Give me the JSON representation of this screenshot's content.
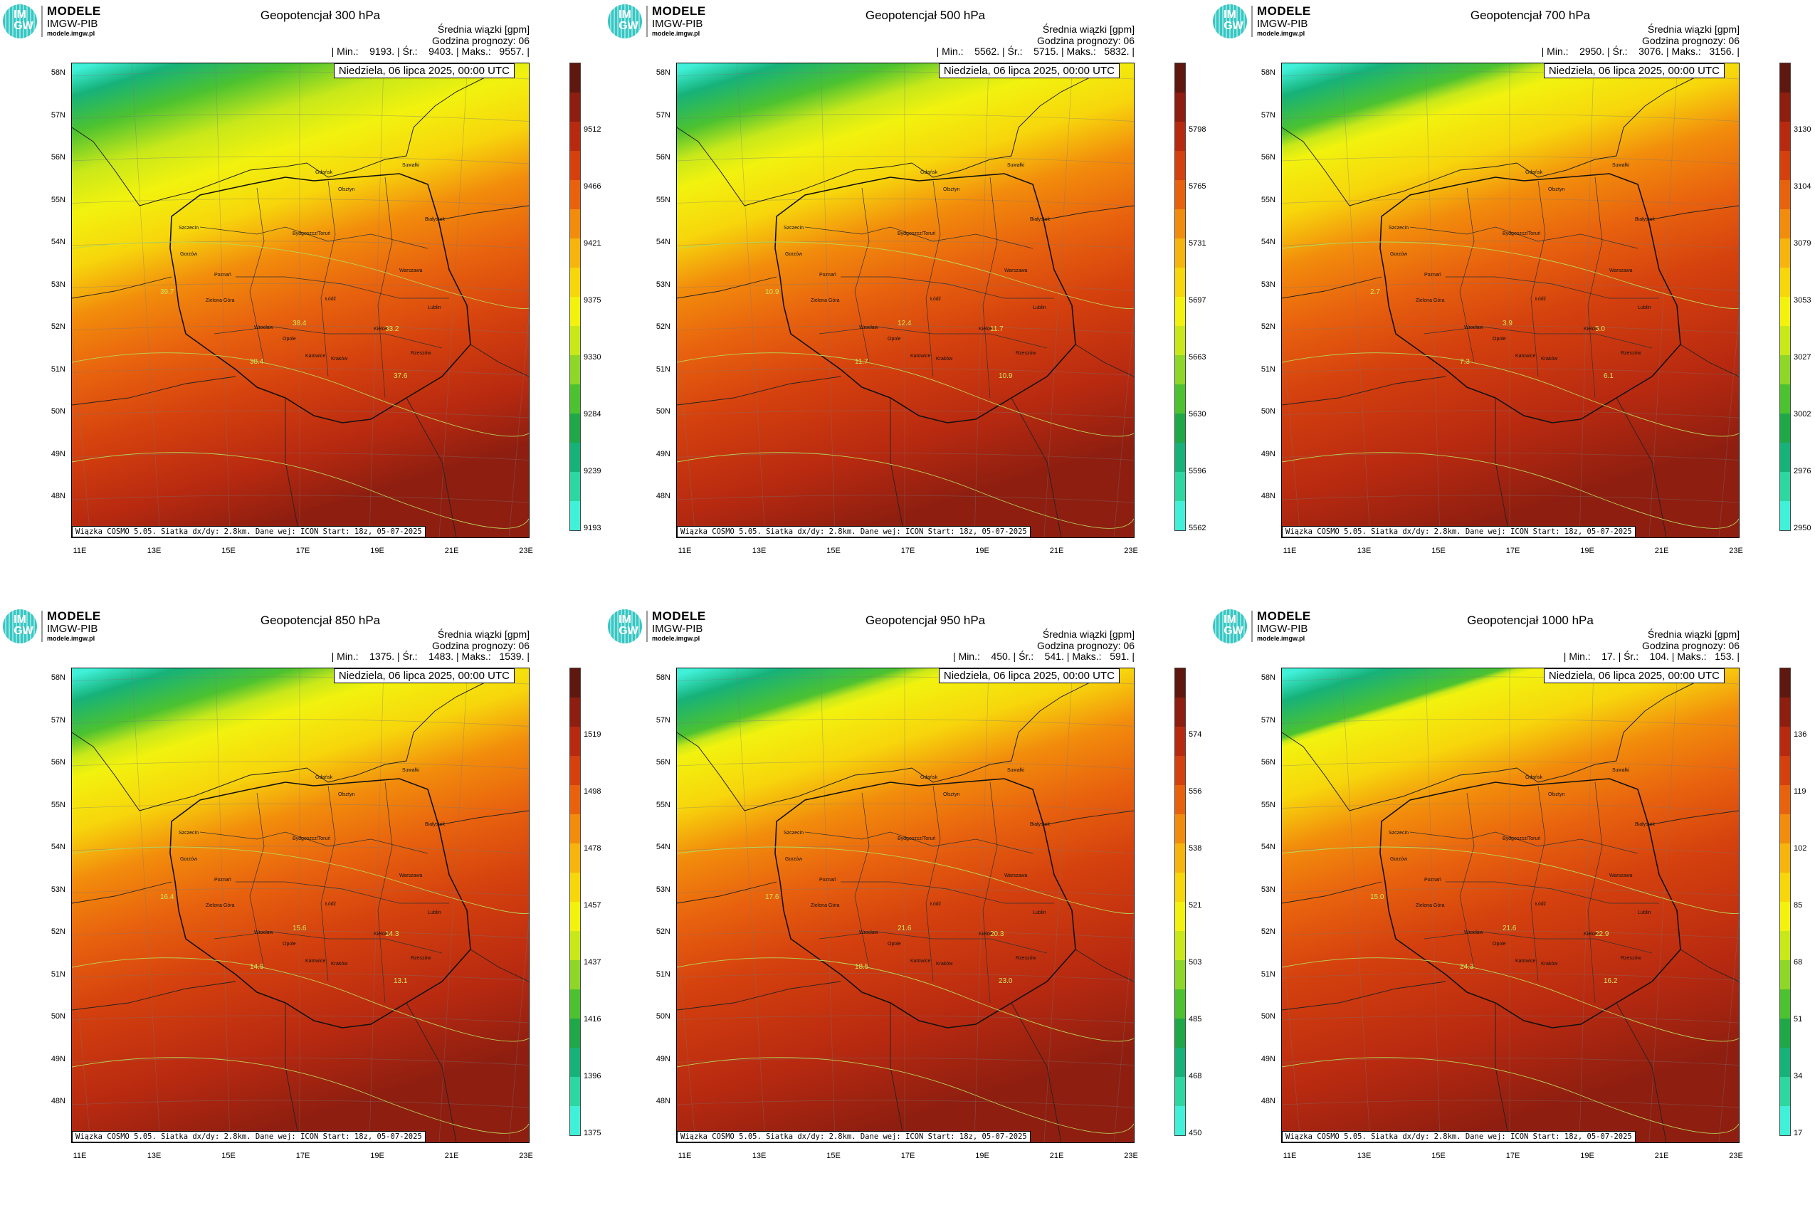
{
  "logo": {
    "mark_top": "IM",
    "mark_bottom": "GW",
    "name": "MODELE",
    "org": "IMGW-PIB",
    "url": "modele.imgw.pl"
  },
  "date_label": "Niedziela, 06 lipca 2025, 00:00 UTC",
  "footer": "Wiązka COSMO 5.05. Siatka dx/dy: 2.8km. Dane wej: ICON Start: 18z, 05-07-2025",
  "info_line1": "Średnia wiązki [gpm]",
  "info_line2": "Godzina prognozy: 06",
  "lat_labels": [
    "58N",
    "57N",
    "56N",
    "55N",
    "54N",
    "53N",
    "52N",
    "51N",
    "50N",
    "49N",
    "48N"
  ],
  "lon_labels": [
    "11E",
    "13E",
    "15E",
    "17E",
    "19E",
    "21E",
    "23E"
  ],
  "cities": [
    "Gdańsk",
    "Olsztyn",
    "Suwałki",
    "Białystok",
    "Szczecin",
    "Bydgoszcz/Toruń",
    "Gorzów",
    "Poznań",
    "Warszawa",
    "Zielona Góra",
    "Łódź",
    "Lublin",
    "Wrocław",
    "Kielce",
    "Opole",
    "Katowice",
    "Kraków",
    "Rzeszów"
  ],
  "colors": {
    "scale": [
      "#40f0d8",
      "#2ed6a0",
      "#16b27a",
      "#1ea848",
      "#4cc230",
      "#8ed628",
      "#c8e81a",
      "#f2f20e",
      "#f7d60c",
      "#f6b40c",
      "#f28c0c",
      "#e8620e",
      "#d4400e",
      "#b82a10",
      "#8e1e10",
      "#5e1810"
    ]
  },
  "panels": [
    {
      "title": "Geopotencjał 300 hPa",
      "stats": "| Min.:    9193. | Śr.:    9403. | Maks.:   9557. |",
      "cbar": [
        "9193",
        "9239",
        "9284",
        "9330",
        "9375",
        "9421",
        "9466",
        "9512"
      ],
      "contour_labels": [
        "33.2",
        "38.4",
        "37.6",
        "39.7",
        "38.4"
      ],
      "shift": 0.0
    },
    {
      "title": "Geopotencjał 500 hPa",
      "stats": "| Min.:    5562. | Śr.:    5715. | Maks.:   5832. |",
      "cbar": [
        "5562",
        "5596",
        "5630",
        "5663",
        "5697",
        "5731",
        "5765",
        "5798"
      ],
      "contour_labels": [
        "11.7",
        "12.4",
        "10.9",
        "10.9",
        "11.7"
      ],
      "shift": 0.05
    },
    {
      "title": "Geopotencjał 700 hPa",
      "stats": "| Min.:    2950. | Śr.:    3076. | Maks.:   3156. |",
      "cbar": [
        "2950",
        "2976",
        "3002",
        "3027",
        "3053",
        "3079",
        "3104",
        "3130"
      ],
      "contour_labels": [
        "5.0",
        "3.9",
        "6.1",
        "2.7",
        "7.3"
      ],
      "shift": 0.1
    },
    {
      "title": "Geopotencjał 850 hPa",
      "stats": "| Min.:    1375. | Śr.:    1483. | Maks.:   1539. |",
      "cbar": [
        "1375",
        "1396",
        "1416",
        "1437",
        "1457",
        "1478",
        "1498",
        "1519"
      ],
      "contour_labels": [
        "14.3",
        "15.6",
        "13.1",
        "16.4",
        "14.9"
      ],
      "shift": 0.08
    },
    {
      "title": "Geopotencjał 950 hPa",
      "stats": "| Min.:    450. | Śr.:    541. | Maks.:   591. |",
      "cbar": [
        "450",
        "468",
        "485",
        "503",
        "521",
        "538",
        "556",
        "574"
      ],
      "contour_labels": [
        "20.3",
        "21.6",
        "23.0",
        "17.6",
        "18.5"
      ],
      "shift": 0.12
    },
    {
      "title": "Geopotencjał 1000 hPa",
      "stats": "| Min.:    17. | Śr.:    104. | Maks.:   153. |",
      "cbar": [
        "17",
        "34",
        "51",
        "68",
        "85",
        "102",
        "119",
        "136"
      ],
      "contour_labels": [
        "22.9",
        "21.6",
        "16.2",
        "15.0",
        "24.3"
      ],
      "shift": 0.14
    }
  ]
}
